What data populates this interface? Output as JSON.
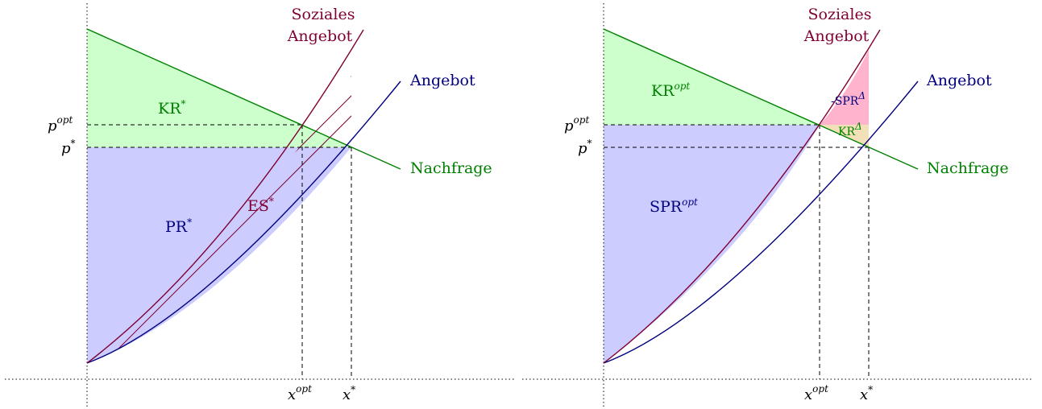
{
  "colors": {
    "demand": "#008000",
    "supply": "#00007f",
    "social": "#7f0033",
    "consumer_fill": "#ccffcc",
    "producer_fill": "#ccccff",
    "loss_fill": "#ffb3cc",
    "gain_fill": "#f2e0b8"
  },
  "left": {
    "social_line1": "Soziales",
    "social_line2": "Angebot",
    "supply_label": "Angebot",
    "demand_label": "Nachfrage",
    "kr_base": "KR",
    "kr_sup": "*",
    "pr_base": "PR",
    "pr_sup": "*",
    "es_base": "ES",
    "es_sup": "*",
    "popt_base": "p",
    "popt_sup": "opt",
    "pstar_base": "p",
    "pstar_sup": "*",
    "xopt_base": "x",
    "xopt_sup": "opt",
    "xstar_base": "x",
    "xstar_sup": "*"
  },
  "right": {
    "social_line1": "Soziales",
    "social_line2": "Angebot",
    "supply_label": "Angebot",
    "demand_label": "Nachfrage",
    "kr_base": "KR",
    "kr_sup": "opt",
    "spr_base": "SPR",
    "spr_sup": "opt",
    "loss_base": "-SPR",
    "loss_sup": "Δ",
    "gain_base": "KR",
    "gain_sup": "Δ",
    "popt_base": "p",
    "popt_sup": "opt",
    "pstar_base": "p",
    "pstar_sup": "*",
    "xopt_base": "x",
    "xopt_sup": "opt",
    "xstar_base": "x",
    "xstar_sup": "*"
  }
}
